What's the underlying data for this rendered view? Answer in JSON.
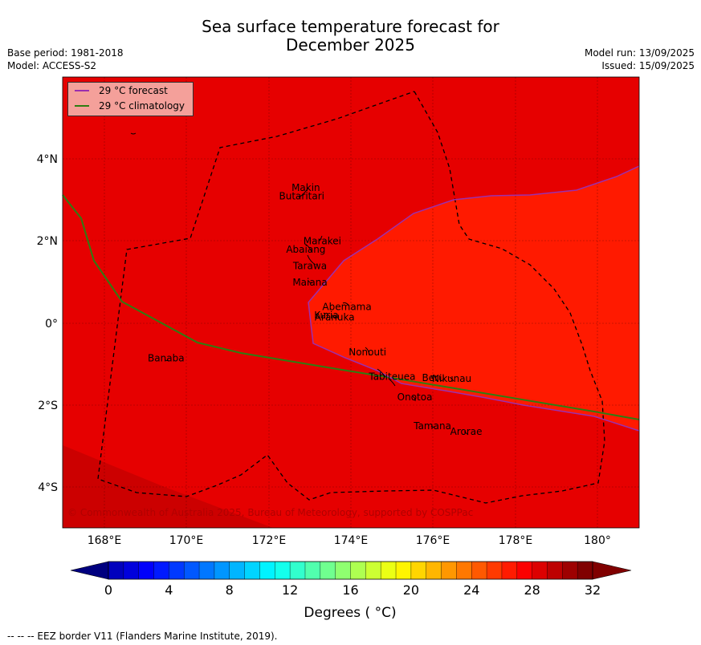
{
  "header": {
    "title_line1": "Sea surface temperature forecast for",
    "title_line2": "December 2025",
    "base_period": "Base period: 1981-2018",
    "model": "Model: ACCESS-S2",
    "model_run": "Model run: 13/09/2025",
    "issued": "Issued: 15/09/2025"
  },
  "legend": {
    "forecast": "29 °C  forecast",
    "climatology": "29 °C  climatology",
    "forecast_color": "#9b2fae",
    "climatology_color": "#2e7d12"
  },
  "map": {
    "lon_range": [
      167,
      181
    ],
    "lat_range": [
      -5,
      6
    ],
    "x_ticks": [
      "168°E",
      "170°E",
      "172°E",
      "174°E",
      "176°E",
      "178°E",
      "180°"
    ],
    "y_ticks": [
      "4°N",
      "2°N",
      "0°",
      "2°S",
      "4°S"
    ],
    "colors": {
      "sst_29_30": "#e60000",
      "sst_30_31": "#ff1a00",
      "sst_31_32": "#cc0000"
    },
    "copyright": "© Commonwealth of Australia 2025, Bureau of Meteorology, supported by COSPPac",
    "islands": [
      {
        "name": "Makin",
        "lon": 172.9,
        "lat": 3.3
      },
      {
        "name": "Butaritari",
        "lon": 172.8,
        "lat": 3.1
      },
      {
        "name": "Marakei",
        "lon": 173.3,
        "lat": 2.0
      },
      {
        "name": "Abaiang",
        "lon": 172.9,
        "lat": 1.8
      },
      {
        "name": "Tarawa",
        "lon": 173.0,
        "lat": 1.4
      },
      {
        "name": "Maiana",
        "lon": 173.0,
        "lat": 1.0
      },
      {
        "name": "Abemama",
        "lon": 173.9,
        "lat": 0.4
      },
      {
        "name": "Kuria",
        "lon": 173.4,
        "lat": 0.2
      },
      {
        "name": "Aranuka",
        "lon": 173.6,
        "lat": 0.15
      },
      {
        "name": "Banaba",
        "lon": 169.5,
        "lat": -0.85
      },
      {
        "name": "Nonouti",
        "lon": 174.4,
        "lat": -0.7
      },
      {
        "name": "Tabiteuea",
        "lon": 175.0,
        "lat": -1.3
      },
      {
        "name": "Beru",
        "lon": 176.0,
        "lat": -1.33
      },
      {
        "name": "Nikunau",
        "lon": 176.45,
        "lat": -1.35
      },
      {
        "name": "Onotoa",
        "lon": 175.55,
        "lat": -1.8
      },
      {
        "name": "Tamana",
        "lon": 175.98,
        "lat": -2.5
      },
      {
        "name": "Arorae",
        "lon": 176.8,
        "lat": -2.64
      }
    ]
  },
  "colorbar": {
    "tick_labels": [
      "0",
      "4",
      "8",
      "12",
      "16",
      "20",
      "24",
      "28",
      "32"
    ],
    "label": "Degrees ( °C)",
    "min": 0,
    "max": 32,
    "step": 1,
    "under_color": "#00007f",
    "over_color": "#800000"
  },
  "footer": {
    "note": "--  --  -- EEZ border V11 (Flanders Marine Institute, 2019)."
  }
}
